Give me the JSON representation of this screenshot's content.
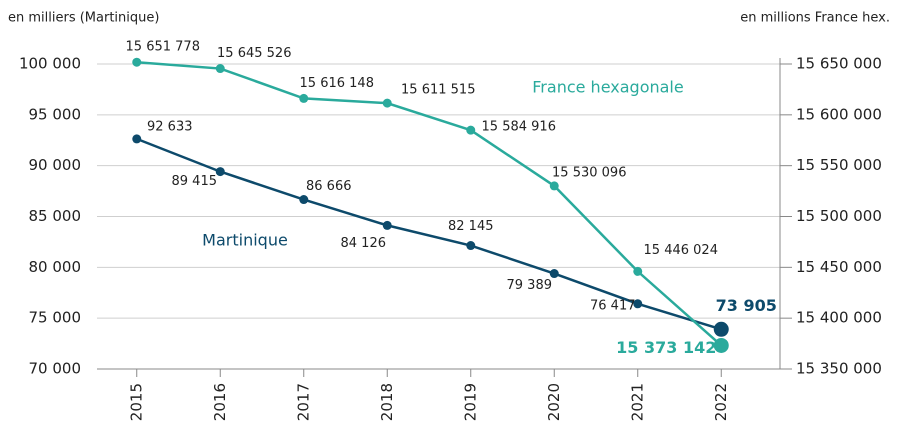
{
  "chart_data": {
    "type": "line",
    "ylabel": "en milliers (Martinique)",
    "y2label": "en millions France hex.",
    "categories": [
      "2015",
      "2016",
      "2017",
      "2018",
      "2019",
      "2020",
      "2021",
      "2022"
    ],
    "ylim": [
      70000,
      100000
    ],
    "yticks": [
      {
        "value": 70000,
        "label": "70 000"
      },
      {
        "value": 75000,
        "label": "75 000"
      },
      {
        "value": 80000,
        "label": "80 000"
      },
      {
        "value": 85000,
        "label": "85 000"
      },
      {
        "value": 90000,
        "label": "90 000"
      },
      {
        "value": 95000,
        "label": "95 000"
      },
      {
        "value": 100000,
        "label": "100 000"
      }
    ],
    "y2lim": [
      15350000,
      15650000
    ],
    "y2ticks": [
      {
        "value": 15350000,
        "label": "15 350 000"
      },
      {
        "value": 15400000,
        "label": "15 400 000"
      },
      {
        "value": 15450000,
        "label": "15 450 000"
      },
      {
        "value": 15500000,
        "label": "15 500 000"
      },
      {
        "value": 15550000,
        "label": "15 550 000"
      },
      {
        "value": 15600000,
        "label": "15 600 000"
      },
      {
        "value": 15650000,
        "label": "15 650 000"
      }
    ],
    "grid": true,
    "series": [
      {
        "name": "Martinique",
        "color": "#0d4a6b",
        "axis": "y",
        "values": [
          92633,
          89415,
          86666,
          84126,
          82145,
          79389,
          76417,
          73905
        ],
        "value_labels": [
          "92 633",
          "89 415",
          "86 666",
          "84 126",
          "82 145",
          "79 389",
          "76 417",
          "73 905"
        ]
      },
      {
        "name": "France hexagonale",
        "color": "#2aaa9c",
        "axis": "y2",
        "values": [
          15651778,
          15645526,
          15616148,
          15611515,
          15584916,
          15530096,
          15446024,
          15373142
        ],
        "value_labels": [
          "15 651 778",
          "15 645 526",
          "15 616 148",
          "15 611 515",
          "15 584 916",
          "15 530 096",
          "15 446 024",
          "15 373 142"
        ]
      }
    ]
  }
}
